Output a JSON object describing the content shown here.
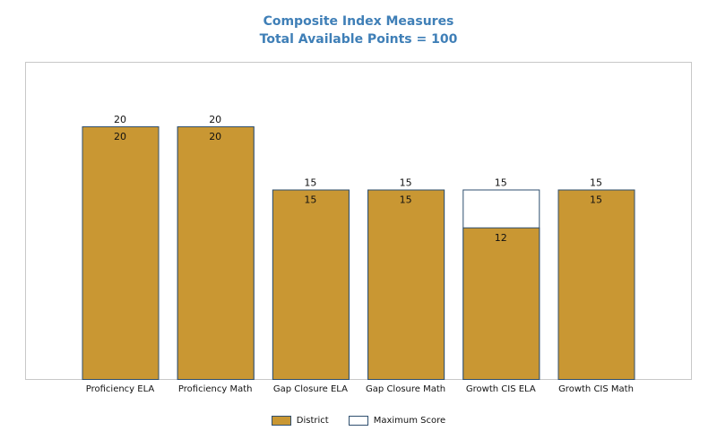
{
  "chart_data": {
    "type": "bar",
    "title": "Composite Index Measures",
    "subtitle": "Total Available Points = 100",
    "categories": [
      "Proficiency ELA",
      "Proficiency Math",
      "Gap Closure ELA",
      "Gap Closure Math",
      "Growth CIS ELA",
      "Growth CIS Math"
    ],
    "series": [
      {
        "name": "District",
        "values": [
          20,
          20,
          15,
          15,
          12,
          15
        ],
        "color": "#c99733"
      },
      {
        "name": "Maximum Score",
        "values": [
          20,
          20,
          15,
          15,
          15,
          15
        ],
        "color": "#ffffff"
      }
    ],
    "ylim": [
      0,
      28
    ],
    "grid": false,
    "legend_position": "bottom-center",
    "colors": {
      "title": "#3f7fb7",
      "bar_outline": "#2f4f6f",
      "frame": "#c8c8c8"
    }
  }
}
